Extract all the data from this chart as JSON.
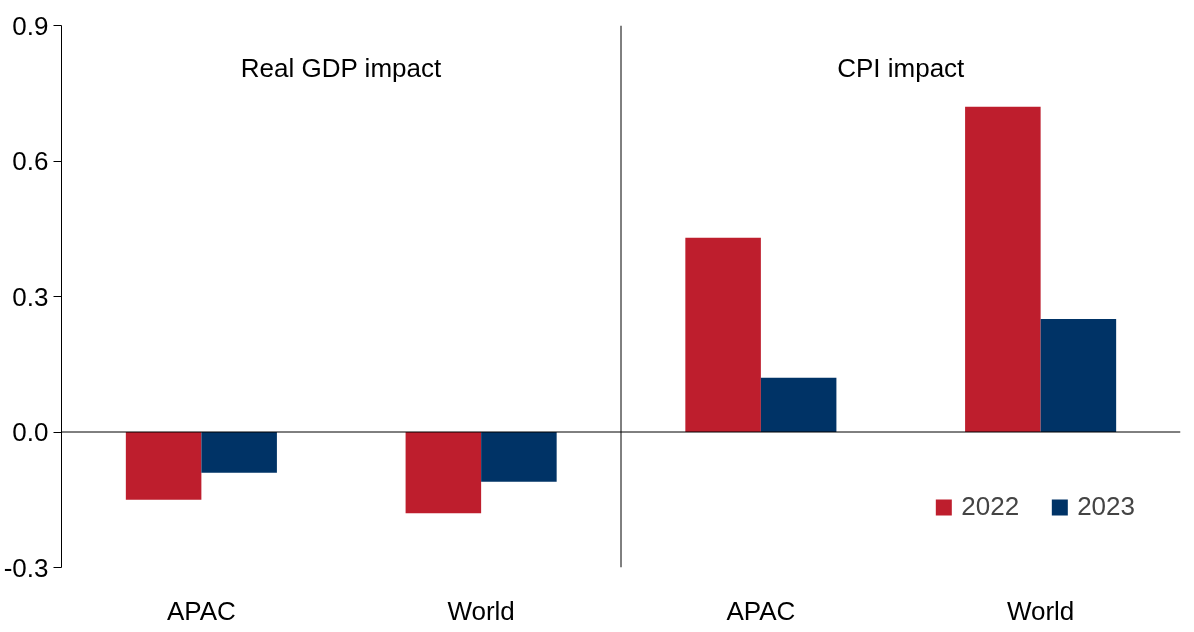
{
  "chart_data": {
    "type": "bar",
    "categories": [
      "APAC",
      "World",
      "APAC",
      "World"
    ],
    "series": [
      {
        "name": "2022",
        "color": "#be1e2d",
        "values": [
          -0.15,
          -0.18,
          0.43,
          0.72
        ]
      },
      {
        "name": "2023",
        "color": "#003366",
        "values": [
          -0.09,
          -0.11,
          0.12,
          0.25
        ]
      }
    ],
    "annotations": [
      "Real GDP impact",
      "CPI impact"
    ],
    "ylim": [
      -0.3,
      0.9
    ],
    "yticks": [
      -0.3,
      {
        "value": 0,
        "label": "0.0"
      },
      0.3,
      0.6,
      0.9
    ],
    "legend": "bottom right"
  }
}
